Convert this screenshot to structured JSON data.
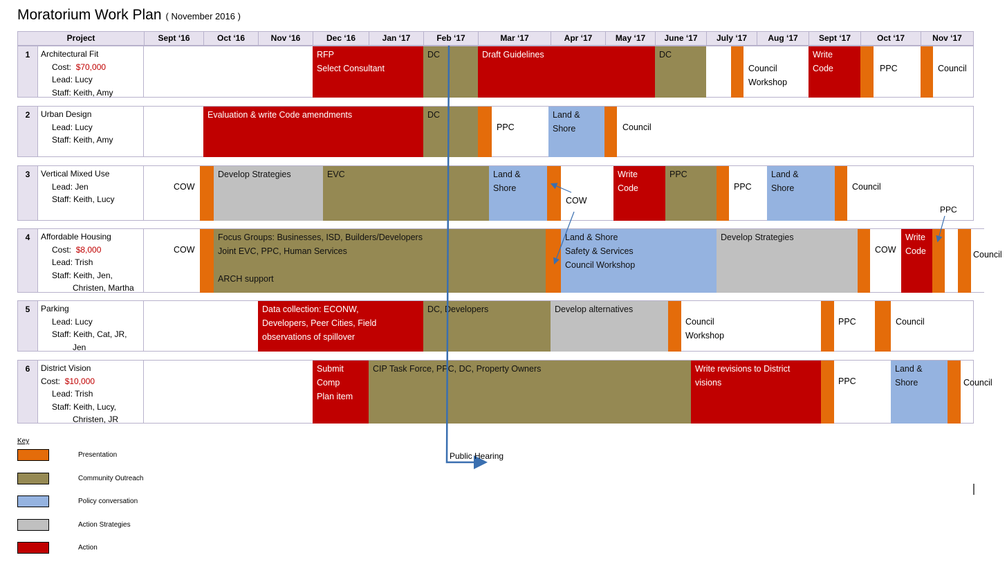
{
  "title": {
    "main": "Moratorium  Work  Plan",
    "sub": "( November  2016 )"
  },
  "header": {
    "project": "Project",
    "months": [
      "Sept ‘16",
      "Oct ‘16",
      "Nov ‘16",
      "Dec ‘16",
      "Jan ‘17",
      "Feb ‘17",
      "Mar ‘17",
      "Apr ‘17",
      "May ‘17",
      "June ‘17",
      "July ‘17",
      "Aug ‘17",
      "Sept ‘17",
      "Oct ‘17",
      "Nov ‘17"
    ]
  },
  "projects": [
    {
      "num": "1",
      "name": "Architectural  Fit",
      "cost_label": "Cost:",
      "cost": "$70,000",
      "lead": "Lead:  Lucy",
      "staff": "Staff:  Keith,  Amy",
      "blocks": [
        "RFP",
        "Select  Consultant",
        "DC",
        "Draft  Guidelines",
        "DC",
        "Council",
        "Workshop",
        "Write",
        "Code",
        "PPC",
        "Council"
      ]
    },
    {
      "num": "2",
      "name": "Urban  Design",
      "lead": "Lead:  Lucy",
      "staff": "Staff:  Keith,  Amy",
      "blocks": [
        "Evaluation  &  write  Code  amendments",
        "DC",
        "PPC",
        "Land  &",
        "Shore",
        "Council"
      ]
    },
    {
      "num": "3",
      "name": "Vertical  Mixed  Use",
      "lead": "Lead:  Jen",
      "staff": "Staff:  Keith,  Lucy",
      "blocks": [
        "COW",
        "Develop  Strategies",
        "EVC",
        "Land  &",
        "Shore",
        "COW",
        "Write",
        "Code",
        "PPC",
        "PPC",
        "Land  &",
        "Shore",
        "Council",
        "PPC"
      ]
    },
    {
      "num": "4",
      "name": "Affordable  Housing",
      "cost_label": "Cost:",
      "cost": "$8,000",
      "lead": "Lead:  Trish",
      "staff": "Staff:  Keith,  Jen,",
      "staff2": "Christen,  Martha",
      "blocks": [
        "COW",
        "Focus  Groups:  Businesses,  ISD,  Builders/Developers",
        "Joint  EVC,  PPC,  Human  Services",
        "ARCH  support",
        "Land  &  Shore",
        "Safety  &  Services",
        "Council  Workshop",
        "Develop  Strategies",
        "COW",
        "Write",
        "Code",
        "Council"
      ]
    },
    {
      "num": "5",
      "name": "Parking",
      "lead": "Lead:  Lucy",
      "staff": "Staff:  Keith,  Cat,  JR,",
      "staff2": "Jen",
      "blocks": [
        "Data  collection:  ECONW,",
        "Developers,  Peer  Cities,  Field",
        "observations  of  spillover",
        "DC,  Developers",
        "Develop  alternatives",
        "Council",
        "Workshop",
        "PPC",
        "Council"
      ]
    },
    {
      "num": "6",
      "name": "District  Vision",
      "cost_label": "Cost:",
      "cost": "$10,000",
      "lead": "Lead:  Trish",
      "staff": "Staff:  Keith,  Lucy,",
      "staff2": "Christen,  JR",
      "blocks": [
        "Submit",
        "Comp",
        "Plan  item",
        "CIP  Task  Force,  PPC,  DC,  Property  Owners",
        "Write  revisions  to  District",
        "visions",
        "PPC",
        "Land  &",
        "Shore",
        "Council"
      ]
    }
  ],
  "annotation": {
    "public_hearing": "Public Hearing"
  },
  "key": {
    "title": "Key",
    "items": [
      {
        "label": "Presentation",
        "color": "#e46c0a"
      },
      {
        "label": "Community  Outreach",
        "color": "#958953"
      },
      {
        "label": "Policy  conversation",
        "color": "#95b3e0"
      },
      {
        "label": "Action  Strategies",
        "color": "#c0c0c0"
      },
      {
        "label": "Action",
        "color": "#c00000"
      }
    ]
  }
}
